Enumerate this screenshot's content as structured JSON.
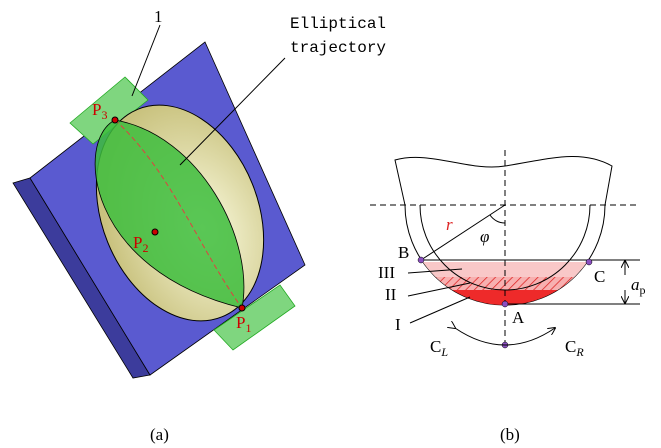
{
  "panel_a": {
    "caption": "(a)",
    "part_label": "1",
    "annotation": [
      "Elliptical",
      "trajectory"
    ],
    "points": [
      {
        "base": "P",
        "sub": "3"
      },
      {
        "base": "P",
        "sub": "2"
      },
      {
        "base": "P",
        "sub": "1"
      }
    ]
  },
  "panel_b": {
    "caption": "(b)",
    "radius_label": "r",
    "angle_label": "φ",
    "points": [
      "B",
      "C",
      "A"
    ],
    "regions": [
      "III",
      "II",
      "I"
    ],
    "directions": [
      {
        "base": "C",
        "sub": "L"
      },
      {
        "base": "C",
        "sub": "R"
      }
    ],
    "depth": {
      "base": "a",
      "sub": "p"
    }
  }
}
